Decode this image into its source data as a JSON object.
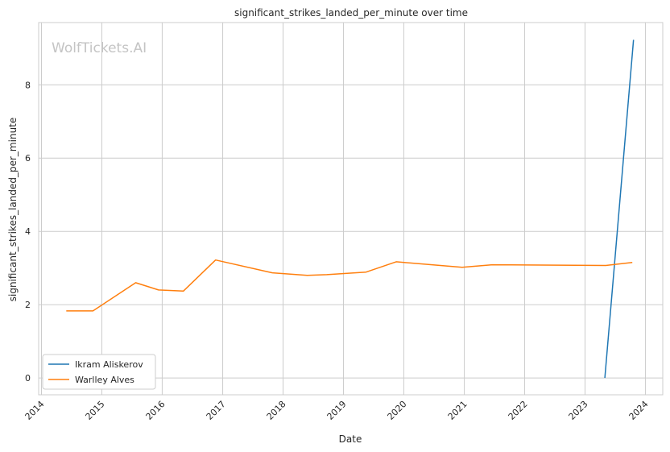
{
  "chart_data": {
    "type": "line",
    "title": "significant_strikes_landed_per_minute over time",
    "xlabel": "Date",
    "ylabel": "significant_strikes_landed_per_minute",
    "watermark": "WolfTickets.AI",
    "x_ticks": [
      "2014",
      "2015",
      "2016",
      "2017",
      "2018",
      "2019",
      "2020",
      "2021",
      "2022",
      "2023",
      "2024"
    ],
    "y_ticks": [
      "0",
      "2",
      "4",
      "6",
      "8"
    ],
    "xlim": [
      "2013-12-15",
      "2024-04-15"
    ],
    "ylim": [
      -0.46,
      9.7
    ],
    "grid": true,
    "legend_position": "lower-left",
    "series": [
      {
        "name": "Ikram Aliskerov",
        "color": "#1f77b4",
        "points": [
          {
            "x": "2023-05-01",
            "y": 0.0
          },
          {
            "x": "2023-10-21",
            "y": 9.23
          }
        ]
      },
      {
        "name": "Warlley Alves",
        "color": "#ff7f0e",
        "points": [
          {
            "x": "2014-05-31",
            "y": 1.83
          },
          {
            "x": "2014-11-08",
            "y": 1.83
          },
          {
            "x": "2015-07-25",
            "y": 2.6
          },
          {
            "x": "2015-12-10",
            "y": 2.4
          },
          {
            "x": "2016-05-08",
            "y": 2.37
          },
          {
            "x": "2016-11-19",
            "y": 3.22
          },
          {
            "x": "2017-10-28",
            "y": 2.87
          },
          {
            "x": "2018-05-27",
            "y": 2.8
          },
          {
            "x": "2018-09-22",
            "y": 2.82
          },
          {
            "x": "2019-05-18",
            "y": 2.89
          },
          {
            "x": "2019-11-16",
            "y": 3.17
          },
          {
            "x": "2020-12-19",
            "y": 3.02
          },
          {
            "x": "2021-06-19",
            "y": 3.09
          },
          {
            "x": "2023-05-06",
            "y": 3.07
          },
          {
            "x": "2023-10-14",
            "y": 3.15
          }
        ]
      }
    ]
  }
}
